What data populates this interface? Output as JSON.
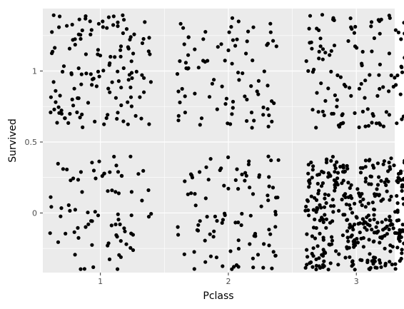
{
  "chart_data": {
    "type": "scatter",
    "title": "",
    "xlabel": "Pclass",
    "ylabel": "Survived",
    "x_ticks": [
      1,
      2,
      3
    ],
    "y_ticks": [
      0,
      0.5,
      1
    ],
    "y_tick_labels": [
      "0",
      "0.5",
      "1"
    ],
    "xlim": [
      0.55,
      3.3
    ],
    "ylim": [
      -0.42,
      1.44
    ],
    "jitter": {
      "width": 0.4,
      "height": 0.4
    },
    "grid": true,
    "point_color": "#000000",
    "panel_background": "#ebebeb",
    "grid_color": "#ffffff",
    "groups": [
      {
        "pclass": 1,
        "survived": 0,
        "count": 80
      },
      {
        "pclass": 1,
        "survived": 1,
        "count": 136
      },
      {
        "pclass": 2,
        "survived": 0,
        "count": 97
      },
      {
        "pclass": 2,
        "survived": 1,
        "count": 87
      },
      {
        "pclass": 3,
        "survived": 0,
        "count": 372
      },
      {
        "pclass": 3,
        "survived": 1,
        "count": 119
      }
    ]
  }
}
